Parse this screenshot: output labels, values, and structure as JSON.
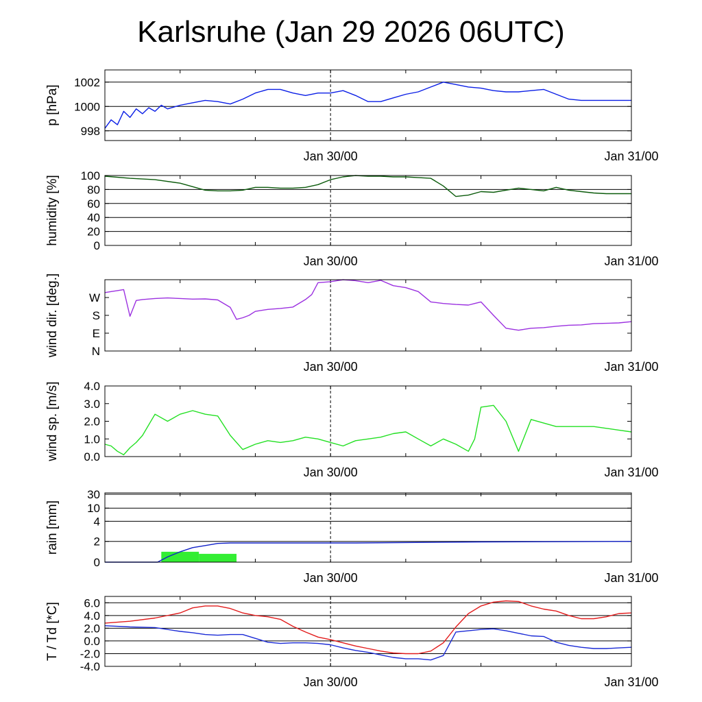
{
  "title": "Karlsruhe (Jan 29 2026 06UTC)",
  "x_tick_labels": [
    "Jan 30/00",
    "Jan 31/00"
  ],
  "colors": {
    "pressure": "#0a1ee6",
    "humidity": "#0a5a0a",
    "wind_dir": "#9b30e0",
    "wind_speed": "#22e022",
    "rain_bar": "#33ee33",
    "rain_line": "#1020c8",
    "temperature": "#e21b1b",
    "dewpoint": "#1a2ad6"
  },
  "chart_data": [
    {
      "type": "line",
      "ylabel": "p [hPa]",
      "x_unit": "hours since Jan 29 06UTC",
      "ylim": [
        997.2,
        1003.0
      ],
      "yticks": [
        998,
        1000,
        1002
      ],
      "ytick_labels": [
        "998",
        "1000",
        "1002"
      ],
      "grid": true,
      "series": [
        {
          "color_key": "pressure",
          "x": [
            0,
            0.5,
            1,
            1.5,
            2,
            2.5,
            3,
            3.5,
            4,
            4.5,
            5,
            6,
            7,
            8,
            9,
            10,
            11,
            12,
            13,
            14,
            15,
            16,
            17,
            18,
            19,
            20,
            21,
            22,
            23,
            24,
            25,
            26,
            27,
            28,
            29,
            30,
            31,
            32,
            33,
            34,
            35,
            36,
            37,
            38,
            39,
            40,
            41,
            42
          ],
          "y": [
            998.2,
            998.9,
            998.5,
            999.6,
            999.1,
            999.8,
            999.4,
            999.9,
            999.6,
            1000.1,
            999.8,
            1000.1,
            1000.3,
            1000.5,
            1000.4,
            1000.2,
            1000.6,
            1001.1,
            1001.4,
            1001.4,
            1001.1,
            1000.9,
            1001.1,
            1001.1,
            1001.3,
            1000.9,
            1000.4,
            1000.4,
            1000.7,
            1001.0,
            1001.2,
            1001.6,
            1002.0,
            1001.8,
            1001.6,
            1001.5,
            1001.3,
            1001.2,
            1001.2,
            1001.3,
            1001.4,
            1001.0,
            1000.6,
            1000.5,
            1000.5,
            1000.5,
            1000.5,
            1000.5
          ]
        }
      ]
    },
    {
      "type": "line",
      "ylabel": "humidity [%]",
      "x_unit": "hours since Jan 29 06UTC",
      "ylim": [
        0,
        100
      ],
      "yticks": [
        0,
        20,
        40,
        60,
        80,
        100
      ],
      "ytick_labels": [
        "0",
        "20",
        "40",
        "60",
        "80",
        "100"
      ],
      "grid": true,
      "series": [
        {
          "color_key": "humidity",
          "x": [
            0,
            2,
            4,
            6,
            7,
            8,
            9,
            10,
            11,
            12,
            13,
            14,
            15,
            16,
            17,
            18,
            19,
            20,
            21,
            22,
            23,
            24,
            25,
            26,
            27,
            28,
            29,
            30,
            31,
            32,
            33,
            34,
            35,
            36,
            37,
            38,
            39,
            40,
            41,
            42
          ],
          "y": [
            99,
            96,
            94,
            89,
            84,
            79,
            78,
            78,
            79,
            83,
            83,
            82,
            82,
            83,
            87,
            94,
            98,
            100,
            99,
            99,
            98,
            98,
            97,
            96,
            85,
            70,
            72,
            77,
            76,
            79,
            82,
            80,
            78,
            83,
            79,
            77,
            75,
            74,
            74,
            74
          ]
        }
      ]
    },
    {
      "type": "line",
      "ylabel": "wind dir. [deg.]",
      "x_unit": "hours since Jan 29 06UTC",
      "ylim": [
        0,
        360
      ],
      "yticks": [
        0,
        90,
        180,
        270
      ],
      "ytick_labels": [
        "N",
        "E",
        "S",
        "W"
      ],
      "grid": false,
      "series": [
        {
          "color_key": "wind_dir",
          "x": [
            0,
            0.5,
            1,
            1.5,
            2,
            2.5,
            3,
            4,
            5,
            6,
            7,
            8,
            9,
            10,
            10.5,
            11,
            11.5,
            12,
            13,
            14,
            15,
            16,
            16.5,
            17,
            18,
            19,
            20,
            21,
            22,
            23,
            24,
            25,
            26,
            27,
            28,
            29,
            29.5,
            30,
            31,
            32,
            33,
            33.5,
            34,
            35,
            36,
            37,
            38,
            39,
            40,
            41,
            42
          ],
          "y": [
            295,
            300,
            305,
            310,
            175,
            255,
            260,
            265,
            268,
            265,
            262,
            263,
            258,
            220,
            160,
            168,
            180,
            200,
            210,
            215,
            222,
            260,
            285,
            345,
            350,
            360,
            355,
            345,
            357,
            330,
            320,
            300,
            248,
            240,
            235,
            232,
            240,
            248,
            180,
            115,
            105,
            110,
            115,
            118,
            125,
            130,
            132,
            138,
            140,
            142,
            148
          ]
        }
      ]
    },
    {
      "type": "line",
      "ylabel": "wind sp. [m/s]",
      "x_unit": "hours since Jan 29 06UTC",
      "ylim": [
        0,
        4
      ],
      "yticks": [
        0,
        1,
        2,
        3,
        4
      ],
      "ytick_labels": [
        "0.0",
        "1.0",
        "2.0",
        "3.0",
        "4.0"
      ],
      "grid": false,
      "series": [
        {
          "color_key": "wind_speed",
          "x": [
            0,
            0.5,
            1,
            1.5,
            2,
            2.5,
            3,
            4,
            5,
            6,
            7,
            8,
            9,
            10,
            11,
            12,
            13,
            14,
            15,
            16,
            17,
            18,
            19,
            20,
            21,
            22,
            23,
            24,
            25,
            26,
            27,
            28,
            29,
            29.5,
            30,
            31,
            32,
            33,
            34,
            35,
            36,
            37,
            38,
            39,
            40,
            41,
            42
          ],
          "y": [
            0.7,
            0.6,
            0.3,
            0.1,
            0.5,
            0.8,
            1.2,
            2.4,
            2.0,
            2.4,
            2.6,
            2.4,
            2.3,
            1.2,
            0.4,
            0.7,
            0.9,
            0.8,
            0.9,
            1.1,
            1.0,
            0.8,
            0.6,
            0.9,
            1.0,
            1.1,
            1.3,
            1.4,
            1.0,
            0.6,
            1.0,
            0.7,
            0.3,
            1.0,
            2.8,
            2.9,
            2.0,
            0.3,
            2.1,
            1.9,
            1.7,
            1.7,
            1.7,
            1.7,
            1.6,
            1.5,
            1.4
          ]
        }
      ]
    },
    {
      "type": "bar",
      "ylabel": "rain [mm]",
      "x_unit": "hours since Jan 29 06UTC",
      "ylim": [
        0,
        30
      ],
      "yticks": [
        0,
        2,
        4,
        10,
        30
      ],
      "ytick_labels": [
        "0",
        "2",
        "4",
        "10",
        "30"
      ],
      "grid": true,
      "bars": [
        {
          "x_start": 4.5,
          "x_end": 7.5,
          "value": 1.0
        },
        {
          "x_start": 7.5,
          "x_end": 10.5,
          "value": 0.8
        }
      ],
      "series": [
        {
          "name": "accumulated",
          "color_key": "rain_line",
          "x": [
            0,
            4.2,
            5,
            6,
            7,
            8,
            9,
            10,
            12,
            20,
            30,
            42
          ],
          "y": [
            0,
            0,
            0.5,
            1.0,
            1.4,
            1.6,
            1.8,
            1.85,
            1.85,
            1.85,
            1.95,
            2.0
          ]
        }
      ]
    },
    {
      "type": "line",
      "ylabel": "T / Td [*C]",
      "x_unit": "hours since Jan 29 06UTC",
      "ylim": [
        -4,
        7
      ],
      "yticks": [
        -4,
        -2,
        0,
        2,
        4,
        6
      ],
      "ytick_labels": [
        "-4.0",
        "-2.0",
        "0.0",
        "2.0",
        "4.0",
        "6.0"
      ],
      "grid": true,
      "series": [
        {
          "color_key": "temperature",
          "x": [
            0,
            2,
            4,
            6,
            7,
            8,
            9,
            10,
            11,
            12,
            13,
            14,
            15,
            16,
            17,
            18,
            19,
            20,
            21,
            22,
            23,
            24,
            25,
            26,
            27,
            28,
            29,
            30,
            31,
            32,
            33,
            34,
            35,
            36,
            37,
            38,
            39,
            40,
            41,
            42
          ],
          "y": [
            2.8,
            3.1,
            3.6,
            4.4,
            5.2,
            5.5,
            5.5,
            5.1,
            4.4,
            4.0,
            3.8,
            3.4,
            2.3,
            1.4,
            0.6,
            0.2,
            -0.3,
            -0.8,
            -1.2,
            -1.6,
            -1.9,
            -2.0,
            -2.0,
            -1.6,
            -0.3,
            2.2,
            4.3,
            5.5,
            6.1,
            6.3,
            6.2,
            5.5,
            5.0,
            4.7,
            4.0,
            3.5,
            3.5,
            3.8,
            4.3,
            4.4
          ]
        },
        {
          "color_key": "dewpoint",
          "x": [
            0,
            2,
            4,
            6,
            7,
            8,
            9,
            10,
            11,
            12,
            13,
            14,
            15,
            16,
            17,
            18,
            19,
            20,
            21,
            22,
            23,
            24,
            25,
            26,
            27,
            28,
            29,
            30,
            31,
            32,
            33,
            34,
            35,
            36,
            37,
            38,
            39,
            40,
            41,
            42
          ],
          "y": [
            2.4,
            2.2,
            2.1,
            1.5,
            1.3,
            1.0,
            0.9,
            1.0,
            1.0,
            0.4,
            -0.2,
            -0.4,
            -0.3,
            -0.3,
            -0.4,
            -0.6,
            -1.1,
            -1.5,
            -1.8,
            -2.2,
            -2.6,
            -2.8,
            -2.8,
            -3.0,
            -2.3,
            1.4,
            1.6,
            1.8,
            1.9,
            1.6,
            1.2,
            0.8,
            0.7,
            -0.2,
            -0.7,
            -1.0,
            -1.2,
            -1.2,
            -1.1,
            -1.0
          ]
        }
      ]
    }
  ]
}
